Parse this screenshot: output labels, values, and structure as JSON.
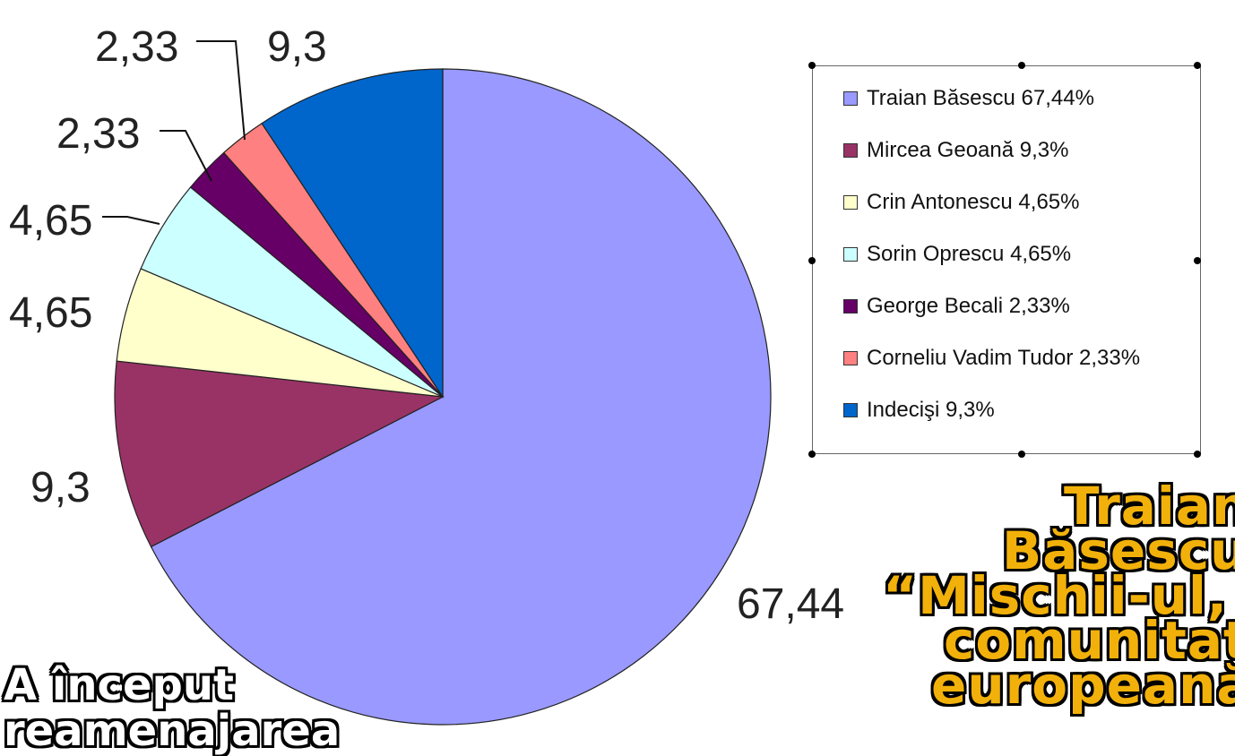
{
  "chart_data": {
    "type": "pie",
    "categories": [
      "Traian Băsescu",
      "Mircea Geoană",
      "Crin Antonescu",
      "Sorin Oprescu",
      "George Becali",
      "Corneliu Vadim Tudor",
      "Indecişi"
    ],
    "values": [
      67.44,
      9.3,
      4.65,
      4.65,
      2.33,
      2.33,
      9.3
    ],
    "value_labels": [
      "67,44",
      "9,3",
      "4,65",
      "4,65",
      "2,33",
      "2,33",
      "9,3"
    ],
    "legend_entries": [
      "Traian Băsescu 67,44%",
      "Mircea Geoană 9,3%",
      "Crin Antonescu 4,65%",
      "Sorin Oprescu 4,65%",
      "George Becali 2,33%",
      "Corneliu Vadim Tudor 2,33%",
      "Indecişi 9,3%"
    ],
    "colors": [
      "#9999ff",
      "#993366",
      "#ffffcc",
      "#ccffff",
      "#660066",
      "#ff8080",
      "#0066cc"
    ],
    "legend_position": "right"
  },
  "overlay": {
    "headline_lines": [
      "Traian",
      "Băsescu:",
      "“Mischii-ul, o",
      "comunitate",
      "europeană”"
    ],
    "bottom_note_lines": [
      "A început",
      "reamenajarea"
    ]
  }
}
